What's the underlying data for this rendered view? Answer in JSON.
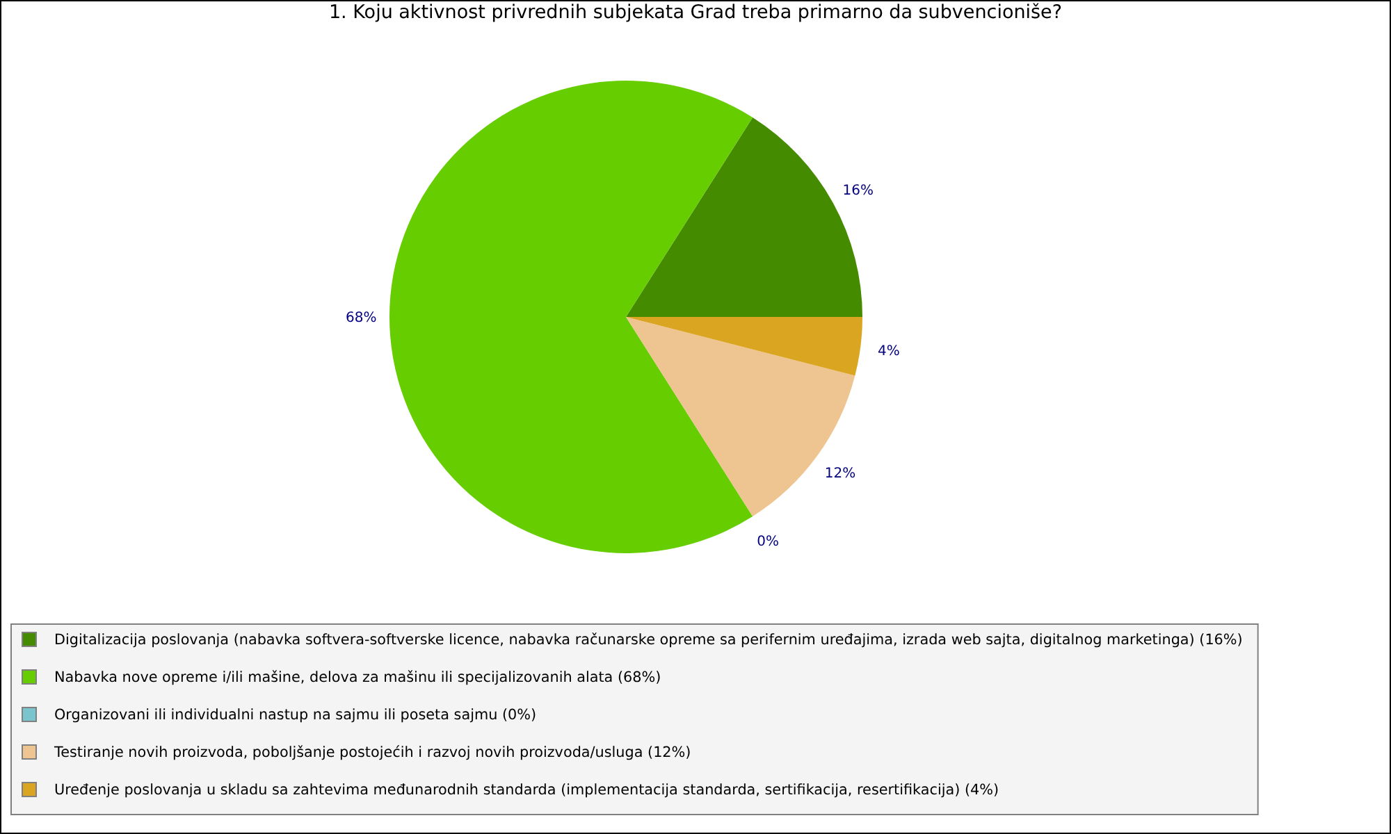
{
  "chart_data": {
    "type": "pie",
    "title": "1. Koju aktivnost privrednih subjekata Grad treba primarno da subvencioniše?",
    "categories": [
      "Digitalizacija poslovanja (nabavka softvera-softverske licence, nabavka računarske opreme sa perifernim uređajima, izrada web sajta, digitalnog marketinga) (16%)",
      "Nabavka nove opreme i/ili mašine, delova za mašinu ili specijalizovanih alata (68%)",
      "Organizovani ili individualni nastup na sajmu ili poseta sajmu (0%)",
      "Testiranje novih proizvoda, poboljšanje postojećih i razvoj novih proizvoda/usluga (12%)",
      "Uređenje poslovanja u skladu sa zahtevima međunarodnih standarda (implementacija standarda, sertifikacija, resertifikacija) (4%)"
    ],
    "values": [
      16,
      68,
      0,
      12,
      4
    ],
    "colors": [
      "#458b00",
      "#66cd00",
      "#7ac5cd",
      "#eec591",
      "#daa520"
    ],
    "value_labels": [
      "16%",
      "68%",
      "0%",
      "12%",
      "4%"
    ],
    "legend": "bottom"
  }
}
